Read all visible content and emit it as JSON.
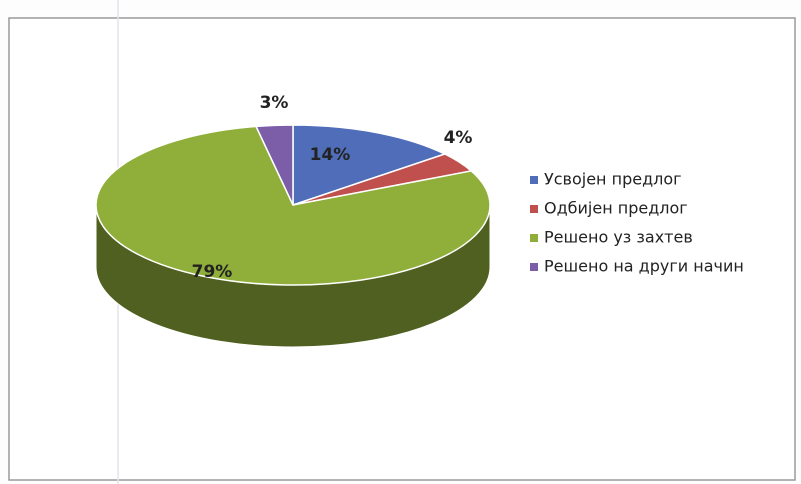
{
  "chart_data": {
    "type": "pie",
    "three_d": true,
    "categories": [
      "Усвојен предлог",
      "Одбијен предлог",
      "Решено уз захтев",
      "Решено на други начин"
    ],
    "values": [
      14,
      4,
      79,
      3
    ],
    "value_labels": [
      "14%",
      "4%",
      "79%",
      "3%"
    ],
    "colors": [
      "#4f6db8",
      "#c0504d",
      "#8fae3a",
      "#7b5ea7"
    ],
    "legend": "right"
  }
}
